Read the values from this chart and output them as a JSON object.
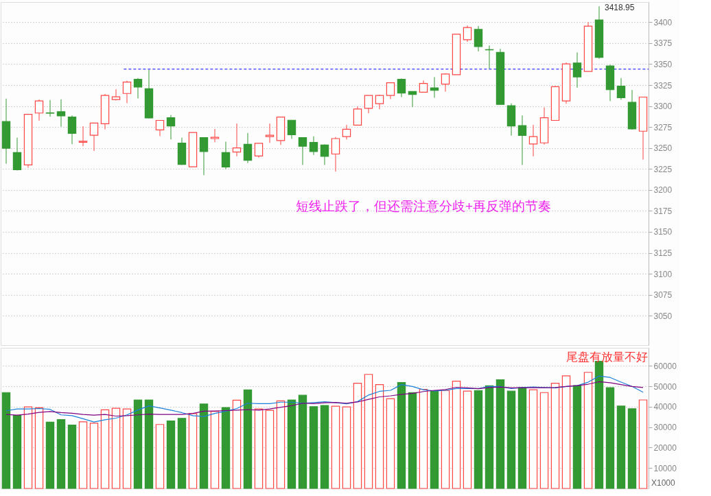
{
  "chart_data": [
    {
      "type": "candlestick",
      "categories": [
        null,
        null,
        null,
        null,
        null,
        null,
        null,
        null,
        null,
        null,
        null,
        null,
        null,
        null,
        null,
        null,
        null,
        null,
        null,
        null,
        null,
        null,
        null,
        null,
        null,
        null,
        null,
        null,
        null,
        null,
        null,
        null,
        null,
        null,
        null,
        null,
        null,
        null,
        null,
        null,
        null,
        null,
        null,
        null,
        null,
        null,
        null,
        null,
        null,
        null,
        null,
        null,
        null,
        null,
        null,
        null,
        null,
        null,
        null
      ],
      "ohlc": [
        [
          3281.5,
          3308.8,
          3231.3,
          3249.7
        ],
        [
          3244.6,
          3262.3,
          3223.2,
          3224.0
        ],
        [
          3229.9,
          3290.1,
          3226.5,
          3290.1
        ],
        [
          3291.7,
          3307.7,
          3282.6,
          3306.1
        ],
        [
          3291.9,
          3307.2,
          3287.4,
          3291.5
        ],
        [
          3293.3,
          3308.0,
          3275.4,
          3288.2
        ],
        [
          3286.9,
          3288.8,
          3254.5,
          3267.4
        ],
        [
          3256.9,
          3275.9,
          3252.1,
          3258.0
        ],
        [
          3265.2,
          3279.7,
          3246.5,
          3279.7
        ],
        [
          3278.9,
          3314.4,
          3272.2,
          3312.6
        ],
        [
          3307.7,
          3320.0,
          3306.7,
          3311.0
        ],
        [
          3315.0,
          3330.2,
          3303.5,
          3328.6
        ],
        [
          3331.8,
          3333.4,
          3309.1,
          3322.7
        ],
        [
          3320.6,
          3343.3,
          3285.3,
          3285.8
        ],
        [
          3271.6,
          3282.9,
          3264.2,
          3282.9
        ],
        [
          3286.1,
          3289.3,
          3260.2,
          3276.2
        ],
        [
          3255.9,
          3262.3,
          3229.7,
          3230.5
        ],
        [
          3227.5,
          3268.4,
          3227.5,
          3268.4
        ],
        [
          3262.3,
          3262.3,
          3217.6,
          3245.7
        ],
        [
          3261.2,
          3272.7,
          3256.9,
          3262.8
        ],
        [
          3244.6,
          3257.5,
          3224.9,
          3227.3
        ],
        [
          3245.2,
          3279.1,
          3240.1,
          3250.0
        ],
        [
          3254.3,
          3267.9,
          3232.1,
          3235.3
        ],
        [
          3240.4,
          3255.6,
          3238.5,
          3255.6
        ],
        [
          3263.6,
          3279.1,
          3256.1,
          3265.2
        ],
        [
          3258.8,
          3286.9,
          3253.7,
          3286.9
        ],
        [
          3283.1,
          3283.1,
          3261.0,
          3265.8
        ],
        [
          3262.3,
          3262.3,
          3229.7,
          3252.1
        ],
        [
          3256.7,
          3263.9,
          3241.7,
          3245.7
        ],
        [
          3253.5,
          3254.3,
          3229.7,
          3240.1
        ],
        [
          3242.8,
          3263.1,
          3221.9,
          3261.2
        ],
        [
          3263.6,
          3277.5,
          3260.2,
          3272.4
        ],
        [
          3277.3,
          3299.5,
          3277.3,
          3296.5
        ],
        [
          3297.3,
          3312.6,
          3291.4,
          3312.6
        ],
        [
          3302.9,
          3313.6,
          3296.2,
          3312.6
        ],
        [
          3312.6,
          3327.8,
          3308.3,
          3327.8
        ],
        [
          3331.8,
          3332.9,
          3310.7,
          3315.5
        ],
        [
          3317.4,
          3317.4,
          3298.7,
          3313.9
        ],
        [
          3316.6,
          3330.5,
          3316.6,
          3327.0
        ],
        [
          3321.7,
          3334.5,
          3309.9,
          3318.7
        ],
        [
          3326.2,
          3339.0,
          3317.1,
          3338.2
        ],
        [
          3337.4,
          3385.6,
          3337.4,
          3385.6
        ],
        [
          3379.1,
          3396.0,
          3376.5,
          3393.6
        ],
        [
          3391.4,
          3395.5,
          3365.2,
          3370.9
        ],
        [
          3367.3,
          3372.2,
          3344.4,
          3367.0
        ],
        [
          3363.9,
          3368.2,
          3301.9,
          3301.9
        ],
        [
          3300.5,
          3303.2,
          3264.7,
          3276.2
        ],
        [
          3276.7,
          3288.8,
          3229.7,
          3265.0
        ],
        [
          3254.8,
          3277.5,
          3240.1,
          3263.6
        ],
        [
          3256.1,
          3298.4,
          3254.0,
          3286.1
        ],
        [
          3282.9,
          3323.8,
          3282.9,
          3323.0
        ],
        [
          3306.1,
          3351.9,
          3302.7,
          3350.3
        ],
        [
          3351.3,
          3363.9,
          3321.9,
          3334.8
        ],
        [
          3341.2,
          3400.0,
          3341.2,
          3395.2
        ],
        [
          3402.7,
          3418.95,
          3356.4,
          3358.0
        ],
        [
          3347.9,
          3349.2,
          3305.9,
          3319.5
        ],
        [
          3323.8,
          3333.4,
          3307.5,
          3309.9
        ],
        [
          3304.5,
          3319.2,
          3271.9,
          3272.7
        ],
        [
          3270.0,
          3310.7,
          3236.1,
          3310.7
        ]
      ],
      "colors": [
        "#339933",
        "#339933",
        "#ff4444",
        "#ff4444",
        "#339933",
        "#339933",
        "#339933",
        "#ff4444",
        "#ff4444",
        "#ff4444",
        "#ff4444",
        "#ff4444",
        "#339933",
        "#339933",
        "#ff4444",
        "#339933",
        "#339933",
        "#ff4444",
        "#339933",
        "#ff4444",
        "#339933",
        "#ff4444",
        "#339933",
        "#ff4444",
        "#ff4444",
        "#ff4444",
        "#339933",
        "#339933",
        "#339933",
        "#339933",
        "#ff4444",
        "#ff4444",
        "#ff4444",
        "#ff4444",
        "#ff4444",
        "#ff4444",
        "#339933",
        "#339933",
        "#ff4444",
        "#339933",
        "#ff4444",
        "#ff4444",
        "#ff4444",
        "#339933",
        "#339933",
        "#339933",
        "#339933",
        "#339933",
        "#ff4444",
        "#ff4444",
        "#ff4444",
        "#ff4444",
        "#339933",
        "#ff4444",
        "#339933",
        "#339933",
        "#339933",
        "#339933",
        "#ff4444"
      ],
      "ylim": [
        3015,
        3424
      ],
      "yticks": [
        3050,
        3075,
        3100,
        3125,
        3150,
        3175,
        3200,
        3225,
        3250,
        3275,
        3300,
        3325,
        3350,
        3375,
        3400
      ],
      "grid": "y",
      "tick_labels": "y",
      "ref_lines": [
        {
          "axis": "y",
          "value": 3344,
          "color": "#0000ff",
          "line_style": "dashed"
        }
      ],
      "annotations": [
        "3418.95",
        "短线止跌了，但还需注意分歧+再反弹的节奏"
      ]
    },
    {
      "type": "bar",
      "categories": [
        null,
        null,
        null,
        null,
        null,
        null,
        null,
        null,
        null,
        null,
        null,
        null,
        null,
        null,
        null,
        null,
        null,
        null,
        null,
        null,
        null,
        null,
        null,
        null,
        null,
        null,
        null,
        null,
        null,
        null,
        null,
        null,
        null,
        null,
        null,
        null,
        null,
        null,
        null,
        null,
        null,
        null,
        null,
        null,
        null,
        null,
        null,
        null,
        null,
        null,
        null,
        null,
        null,
        null,
        null,
        null,
        null,
        null,
        null
      ],
      "series": [
        {
          "type": "bar",
          "colors": [
            "#339933",
            "#339933",
            "#ff4444",
            "#ff4444",
            "#339933",
            "#339933",
            "#339933",
            "#ff4444",
            "#ff4444",
            "#ff4444",
            "#ff4444",
            "#ff4444",
            "#339933",
            "#339933",
            "#ff4444",
            "#339933",
            "#339933",
            "#ff4444",
            "#339933",
            "#ff4444",
            "#339933",
            "#ff4444",
            "#339933",
            "#ff4444",
            "#ff4444",
            "#ff4444",
            "#339933",
            "#339933",
            "#339933",
            "#339933",
            "#ff4444",
            "#ff4444",
            "#ff4444",
            "#ff4444",
            "#ff4444",
            "#ff4444",
            "#339933",
            "#339933",
            "#ff4444",
            "#339933",
            "#ff4444",
            "#ff4444",
            "#ff4444",
            "#339933",
            "#339933",
            "#339933",
            "#339933",
            "#339933",
            "#ff4444",
            "#ff4444",
            "#ff4444",
            "#ff4444",
            "#339933",
            "#ff4444",
            "#339933",
            "#339933",
            "#339933",
            "#339933",
            "#ff4444"
          ],
          "values": [
            46900,
            35700,
            39900,
            39500,
            32400,
            33700,
            31000,
            32600,
            31900,
            38500,
            39200,
            38900,
            43300,
            43300,
            31300,
            33000,
            34300,
            36600,
            41300,
            37700,
            39600,
            43200,
            48200,
            38900,
            38200,
            42800,
            43300,
            45600,
            40000,
            40600,
            40200,
            39900,
            51500,
            55800,
            50800,
            43900,
            51800,
            46900,
            48500,
            47800,
            47900,
            52500,
            47600,
            47900,
            50200,
            53200,
            47600,
            49300,
            48300,
            46900,
            51500,
            55100,
            50300,
            56800,
            62200,
            49300,
            40300,
            39000,
            43300
          ]
        },
        {
          "type": "line",
          "color": "#1a7fd8",
          "values": [
            38000,
            38900,
            38900,
            39100,
            38700,
            36000,
            35600,
            34100,
            32500,
            33600,
            34400,
            36000,
            38400,
            40400,
            39400,
            38300,
            37100,
            35600,
            35200,
            36700,
            37800,
            39100,
            41700,
            41500,
            41500,
            42200,
            42200,
            41700,
            42000,
            42400,
            42000,
            41400,
            42500,
            45700,
            47500,
            48000,
            50800,
            49900,
            48300,
            47700,
            48000,
            48900,
            48900,
            48900,
            49900,
            49900,
            48900,
            49400,
            49600,
            49400,
            49200,
            49900,
            50300,
            52000,
            55000,
            54300,
            52000,
            49900,
            47100
          ]
        },
        {
          "type": "line",
          "color": "#800080",
          "values": [
            36200,
            35900,
            36400,
            37200,
            37600,
            37100,
            36800,
            36200,
            35900,
            36200,
            35400,
            35600,
            36000,
            36400,
            36200,
            36200,
            36200,
            36700,
            37800,
            37900,
            38100,
            38300,
            38600,
            38300,
            38900,
            39700,
            40500,
            41700,
            41500,
            41900,
            42100,
            41700,
            42300,
            43600,
            44800,
            45300,
            46000,
            46500,
            47400,
            48000,
            48400,
            49500,
            49200,
            48800,
            49400,
            49600,
            49200,
            49300,
            49300,
            49300,
            49400,
            49900,
            50300,
            51000,
            52200,
            51700,
            50800,
            49900,
            49400
          ]
        }
      ],
      "ylim": [
        0,
        68800
      ],
      "yticks": [
        10000,
        20000,
        30000,
        40000,
        50000,
        60000
      ],
      "grid": "y",
      "tick_labels": "y",
      "annotations": [
        "尾盘有放量不好",
        "X1000"
      ]
    }
  ]
}
